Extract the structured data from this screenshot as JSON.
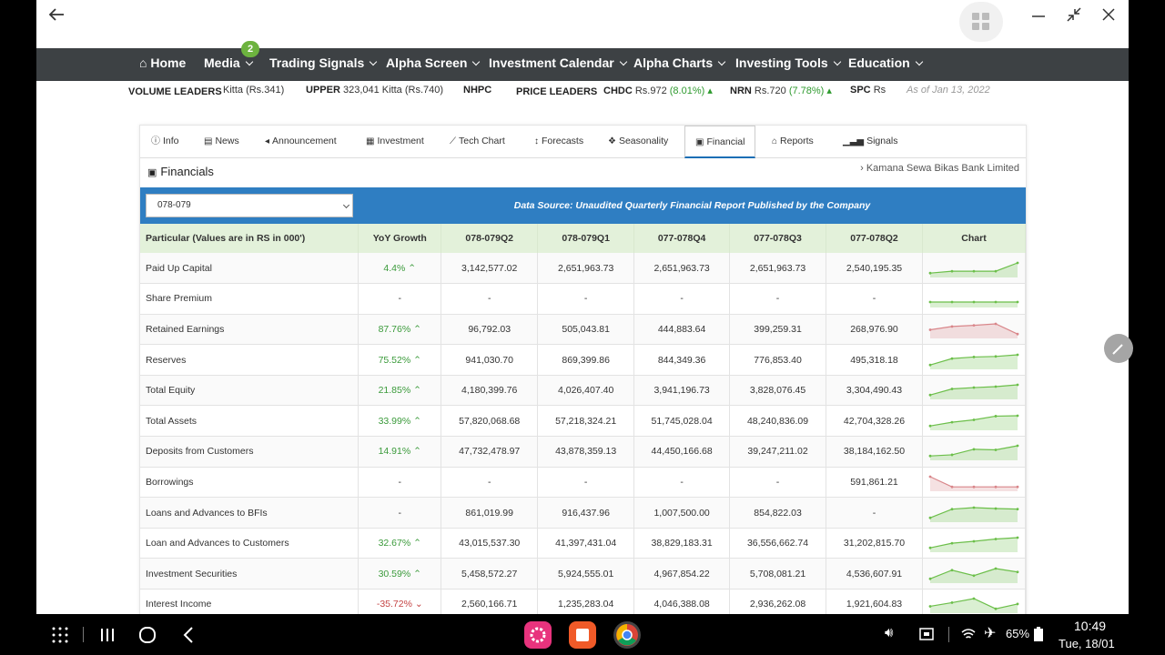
{
  "nav": {
    "items": [
      {
        "label": "Home",
        "icon": "home-icon"
      },
      {
        "label": "Media",
        "badge": "2"
      },
      {
        "label": "Trading Signals"
      },
      {
        "label": "Alpha Screen"
      },
      {
        "label": "Investment Calendar"
      },
      {
        "label": "Alpha Charts"
      },
      {
        "label": "Investing Tools"
      },
      {
        "label": "Education"
      }
    ]
  },
  "ticker": {
    "volume_head": "VOLUME LEADERS",
    "v1": "Kitta (Rs.341)",
    "v2_sym": "UPPER",
    "v2_val": "323,041 Kitta (Rs.740)",
    "v3_sym": "NHPC",
    "price_head": "PRICE LEADERS",
    "p1_sym": "CHDC",
    "p1_price": "Rs.972",
    "p1_pct": "(8.01%)",
    "p2_sym": "NRN",
    "p2_price": "Rs.720",
    "p2_pct": "(7.78%)",
    "p3_sym": "SPC",
    "p3_price": "Rs",
    "as_of": "As of Jan 13, 2022"
  },
  "tabs": [
    {
      "label": "Info",
      "icon": "info-icon"
    },
    {
      "label": "News",
      "icon": "newspaper-icon"
    },
    {
      "label": "Announcement",
      "icon": "megaphone-icon"
    },
    {
      "label": "Investment",
      "icon": "calendar-icon"
    },
    {
      "label": "Tech Chart",
      "icon": "line-chart-icon"
    },
    {
      "label": "Forecasts",
      "icon": "arrows-icon"
    },
    {
      "label": "Seasonality",
      "icon": "cubes-icon"
    },
    {
      "label": "Financial",
      "icon": "money-icon",
      "active": true
    },
    {
      "label": "Reports",
      "icon": "bank-icon"
    },
    {
      "label": "Signals",
      "icon": "signal-icon"
    }
  ],
  "financial": {
    "title": "Financials",
    "company": "Kamana Sewa Bikas Bank Limited",
    "fiscal_year": "078-079",
    "data_source": "Data Source: Unaudited Quarterly Financial Report Published by the Company",
    "headers": [
      "Particular (Values are in RS in 000')",
      "YoY Growth",
      "078-079Q2",
      "078-079Q1",
      "077-078Q4",
      "077-078Q3",
      "077-078Q2",
      "Chart"
    ],
    "rows": [
      {
        "name": "Paid Up Capital",
        "growth": "4.4%",
        "dir": "up",
        "values": [
          "3,142,577.02",
          "2,651,963.73",
          "2,651,963.73",
          "2,651,963.73",
          "2,540,195.35"
        ]
      },
      {
        "name": "Share Premium",
        "growth": "-",
        "dir": "none",
        "values": [
          "-",
          "-",
          "-",
          "-",
          "-"
        ]
      },
      {
        "name": "Retained Earnings",
        "growth": "87.76%",
        "dir": "up",
        "values": [
          "96,792.03",
          "505,043.81",
          "444,883.64",
          "399,259.31",
          "268,976.90"
        ]
      },
      {
        "name": "Reserves",
        "growth": "75.52%",
        "dir": "up",
        "values": [
          "941,030.70",
          "869,399.86",
          "844,349.36",
          "776,853.40",
          "495,318.18"
        ]
      },
      {
        "name": "Total Equity",
        "growth": "21.85%",
        "dir": "up",
        "values": [
          "4,180,399.76",
          "4,026,407.40",
          "3,941,196.73",
          "3,828,076.45",
          "3,304,490.43"
        ]
      },
      {
        "name": "Total Assets",
        "growth": "33.99%",
        "dir": "up",
        "values": [
          "57,820,068.68",
          "57,218,324.21",
          "51,745,028.04",
          "48,240,836.09",
          "42,704,328.26"
        ]
      },
      {
        "name": "Deposits from Customers",
        "growth": "14.91%",
        "dir": "up",
        "values": [
          "47,732,478.97",
          "43,878,359.13",
          "44,450,166.68",
          "39,247,211.02",
          "38,184,162.50"
        ]
      },
      {
        "name": "Borrowings",
        "growth": "-",
        "dir": "none",
        "values": [
          "-",
          "-",
          "-",
          "-",
          "591,861.21"
        ]
      },
      {
        "name": "Loans and Advances to BFIs",
        "growth": "-",
        "dir": "none",
        "values": [
          "861,019.99",
          "916,437.96",
          "1,007,500.00",
          "854,822.03",
          "-"
        ]
      },
      {
        "name": "Loan and Advances to Customers",
        "growth": "32.67%",
        "dir": "up",
        "values": [
          "43,015,537.30",
          "41,397,431.04",
          "38,829,183.31",
          "36,556,662.74",
          "31,202,815.70"
        ]
      },
      {
        "name": "Investment Securities",
        "growth": "30.59%",
        "dir": "up",
        "values": [
          "5,458,572.27",
          "5,924,555.01",
          "4,967,854.22",
          "5,708,081.21",
          "4,536,607.91"
        ]
      },
      {
        "name": "Interest Income",
        "growth": "-35.72%",
        "dir": "down",
        "values": [
          "2,560,166.71",
          "1,235,283.04",
          "4,046,388.08",
          "2,936,262.08",
          "1,921,604.83"
        ]
      }
    ]
  },
  "colors": {
    "nav_bg": "#3d4144",
    "accent_blue": "#2f7ec2",
    "header_green": "#e3f1da",
    "positive": "#3a9a3a",
    "negative": "#c54545"
  },
  "system": {
    "time": "10:49",
    "date": "Tue, 18/01",
    "battery": "65%"
  }
}
